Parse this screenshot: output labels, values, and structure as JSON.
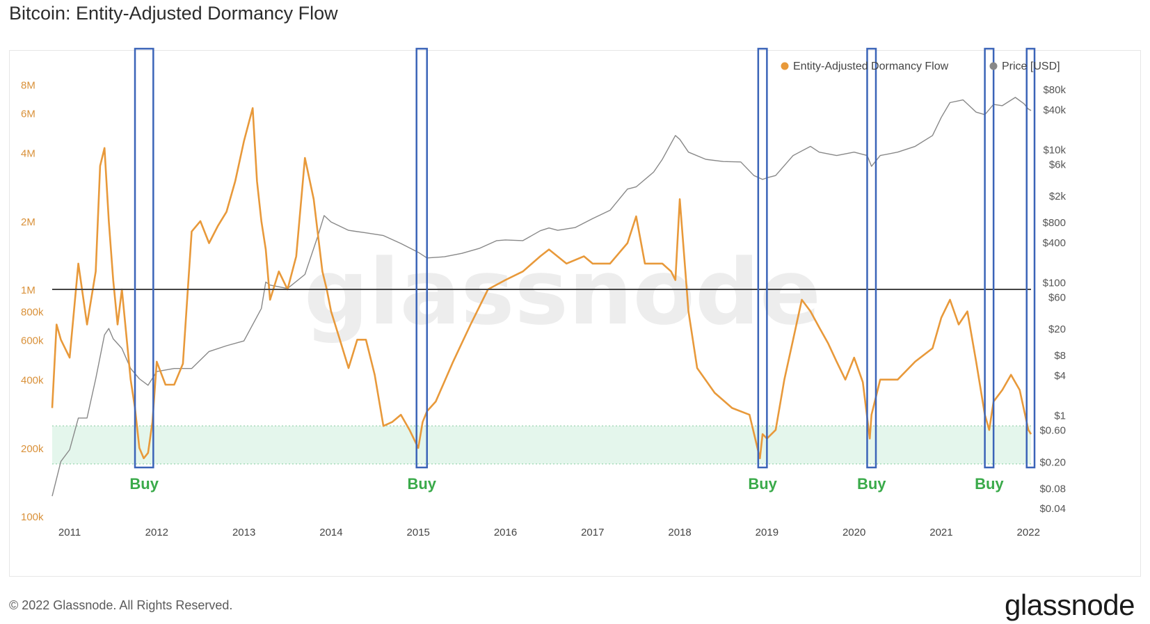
{
  "header": {
    "title": "Bitcoin: Entity-Adjusted Dormancy Flow"
  },
  "footer": {
    "copyright": "© 2022 Glassnode. All Rights Reserved.",
    "logo": "glassnode"
  },
  "watermark": "glassnode",
  "colors": {
    "dormancy": "#e8993a",
    "price": "#888888",
    "buy_box": "#3b64b8",
    "buy_label": "#3aaa4a",
    "threshold_line": "#444444",
    "buy_zone": "#e4f6ec",
    "left_tick": "#d9913a",
    "right_tick": "#555555"
  },
  "chart_data": {
    "type": "line",
    "title": "Bitcoin: Entity-Adjusted Dormancy Flow",
    "x_range": [
      2010.8,
      2022.03
    ],
    "x_ticks": [
      "2011",
      "2012",
      "2013",
      "2014",
      "2015",
      "2016",
      "2017",
      "2018",
      "2019",
      "2020",
      "2021",
      "2022"
    ],
    "y_left": {
      "scale": "log",
      "range": [
        100000,
        10000000
      ],
      "tick_labels": [
        "8M",
        "6M",
        "4M",
        "2M",
        "1M",
        "800k",
        "600k",
        "400k",
        "200k",
        "100k"
      ],
      "tick_values": [
        8000000,
        6000000,
        4000000,
        2000000,
        1000000,
        800000,
        600000,
        400000,
        200000,
        100000
      ]
    },
    "y_right": {
      "scale": "log",
      "range": [
        0.03,
        200000
      ],
      "tick_labels": [
        "$80k",
        "$40k",
        "$10k",
        "$6k",
        "$2k",
        "$800",
        "$400",
        "$100",
        "$60",
        "$20",
        "$8",
        "$4",
        "$1",
        "$0.60",
        "$0.20",
        "$0.08",
        "$0.04"
      ],
      "tick_values": [
        80000,
        40000,
        10000,
        6000,
        2000,
        800,
        400,
        100,
        60,
        20,
        8,
        4,
        1,
        0.6,
        0.2,
        0.08,
        0.04
      ]
    },
    "legend": {
      "placement": "top-right",
      "entries": [
        "Entity-Adjusted Dormancy Flow",
        "Price [USD]"
      ]
    },
    "threshold": 1000000,
    "buy_zone": [
      170000,
      250000
    ],
    "buy_label": "Buy",
    "buy_windows": [
      {
        "from": 2011.75,
        "to": 2011.96,
        "label": "Buy"
      },
      {
        "from": 2014.98,
        "to": 2015.1,
        "label": "Buy"
      },
      {
        "from": 2018.9,
        "to": 2019.0,
        "label": "Buy"
      },
      {
        "from": 2020.15,
        "to": 2020.25,
        "label": "Buy"
      },
      {
        "from": 2021.5,
        "to": 2021.6,
        "label": "Buy"
      },
      {
        "from": 2021.98,
        "to": 2022.07,
        "label": ""
      }
    ],
    "series": [
      {
        "name": "Entity-Adjusted Dormancy Flow",
        "x": [
          2010.8,
          2010.85,
          2010.9,
          2011.0,
          2011.1,
          2011.2,
          2011.3,
          2011.35,
          2011.4,
          2011.45,
          2011.5,
          2011.55,
          2011.6,
          2011.7,
          2011.75,
          2011.8,
          2011.85,
          2011.9,
          2011.95,
          2012.0,
          2012.1,
          2012.2,
          2012.3,
          2012.4,
          2012.5,
          2012.6,
          2012.7,
          2012.8,
          2012.9,
          2013.0,
          2013.1,
          2013.15,
          2013.2,
          2013.25,
          2013.3,
          2013.4,
          2013.5,
          2013.6,
          2013.7,
          2013.8,
          2013.9,
          2013.95,
          2014.0,
          2014.1,
          2014.2,
          2014.3,
          2014.4,
          2014.5,
          2014.6,
          2014.7,
          2014.8,
          2014.9,
          2015.0,
          2015.05,
          2015.1,
          2015.2,
          2015.4,
          2015.6,
          2015.8,
          2016.0,
          2016.2,
          2016.4,
          2016.5,
          2016.7,
          2016.9,
          2017.0,
          2017.2,
          2017.4,
          2017.5,
          2017.6,
          2017.8,
          2017.9,
          2017.95,
          2018.0,
          2018.1,
          2018.2,
          2018.4,
          2018.6,
          2018.8,
          2018.92,
          2018.95,
          2019.0,
          2019.1,
          2019.2,
          2019.3,
          2019.4,
          2019.5,
          2019.6,
          2019.7,
          2019.8,
          2019.9,
          2020.0,
          2020.1,
          2020.18,
          2020.2,
          2020.3,
          2020.5,
          2020.7,
          2020.9,
          2021.0,
          2021.1,
          2021.2,
          2021.3,
          2021.4,
          2021.5,
          2021.55,
          2021.6,
          2021.7,
          2021.8,
          2021.9,
          2022.0,
          2022.03
        ],
        "values": [
          300000,
          700000,
          600000,
          500000,
          1300000,
          700000,
          1200000,
          3500000,
          4200000,
          2000000,
          1100000,
          700000,
          1000000,
          400000,
          300000,
          200000,
          180000,
          190000,
          260000,
          480000,
          380000,
          380000,
          470000,
          1800000,
          2000000,
          1600000,
          1900000,
          2200000,
          3000000,
          4500000,
          6300000,
          3000000,
          2000000,
          1500000,
          900000,
          1200000,
          1000000,
          1400000,
          3800000,
          2500000,
          1200000,
          1000000,
          800000,
          600000,
          450000,
          600000,
          600000,
          420000,
          250000,
          260000,
          280000,
          240000,
          200000,
          260000,
          290000,
          320000,
          480000,
          700000,
          1000000,
          1100000,
          1200000,
          1400000,
          1500000,
          1300000,
          1400000,
          1300000,
          1300000,
          1600000,
          2100000,
          1300000,
          1300000,
          1200000,
          1100000,
          2500000,
          800000,
          450000,
          350000,
          300000,
          280000,
          180000,
          230000,
          220000,
          240000,
          400000,
          600000,
          900000,
          800000,
          680000,
          580000,
          480000,
          400000,
          500000,
          390000,
          220000,
          280000,
          400000,
          400000,
          480000,
          550000,
          750000,
          900000,
          700000,
          800000,
          480000,
          280000,
          240000,
          320000,
          360000,
          420000,
          360000,
          240000,
          230000
        ]
      },
      {
        "name": "Price [USD]",
        "x": [
          2010.8,
          2010.9,
          2011.0,
          2011.1,
          2011.2,
          2011.3,
          2011.4,
          2011.45,
          2011.5,
          2011.6,
          2011.7,
          2011.8,
          2011.9,
          2012.0,
          2012.2,
          2012.4,
          2012.6,
          2012.8,
          2013.0,
          2013.2,
          2013.25,
          2013.3,
          2013.5,
          2013.7,
          2013.85,
          2013.92,
          2014.0,
          2014.2,
          2014.4,
          2014.6,
          2014.8,
          2015.0,
          2015.1,
          2015.3,
          2015.5,
          2015.7,
          2015.9,
          2016.0,
          2016.2,
          2016.4,
          2016.5,
          2016.6,
          2016.8,
          2017.0,
          2017.2,
          2017.4,
          2017.5,
          2017.7,
          2017.8,
          2017.95,
          2018.0,
          2018.1,
          2018.3,
          2018.5,
          2018.7,
          2018.85,
          2018.95,
          2019.0,
          2019.1,
          2019.3,
          2019.5,
          2019.6,
          2019.8,
          2020.0,
          2020.15,
          2020.2,
          2020.3,
          2020.5,
          2020.7,
          2020.9,
          2021.0,
          2021.1,
          2021.25,
          2021.4,
          2021.5,
          2021.6,
          2021.7,
          2021.85,
          2021.95,
          2022.0,
          2022.03
        ],
        "values": [
          0.06,
          0.2,
          0.3,
          0.9,
          0.9,
          3.5,
          16,
          20,
          14,
          10,
          5,
          3.5,
          2.8,
          4.5,
          5,
          5,
          9,
          11,
          13,
          40,
          100,
          90,
          80,
          130,
          500,
          1000,
          800,
          600,
          550,
          500,
          380,
          280,
          230,
          240,
          270,
          320,
          420,
          430,
          420,
          590,
          650,
          600,
          660,
          900,
          1200,
          2500,
          2700,
          4500,
          7000,
          16000,
          14000,
          9000,
          7000,
          6500,
          6400,
          4000,
          3500,
          3700,
          4000,
          8000,
          11000,
          9000,
          8000,
          9000,
          8000,
          5500,
          8000,
          9000,
          11000,
          16000,
          30000,
          50000,
          55000,
          36000,
          33000,
          47000,
          45000,
          60000,
          48000,
          40000,
          38000
        ]
      }
    ]
  }
}
